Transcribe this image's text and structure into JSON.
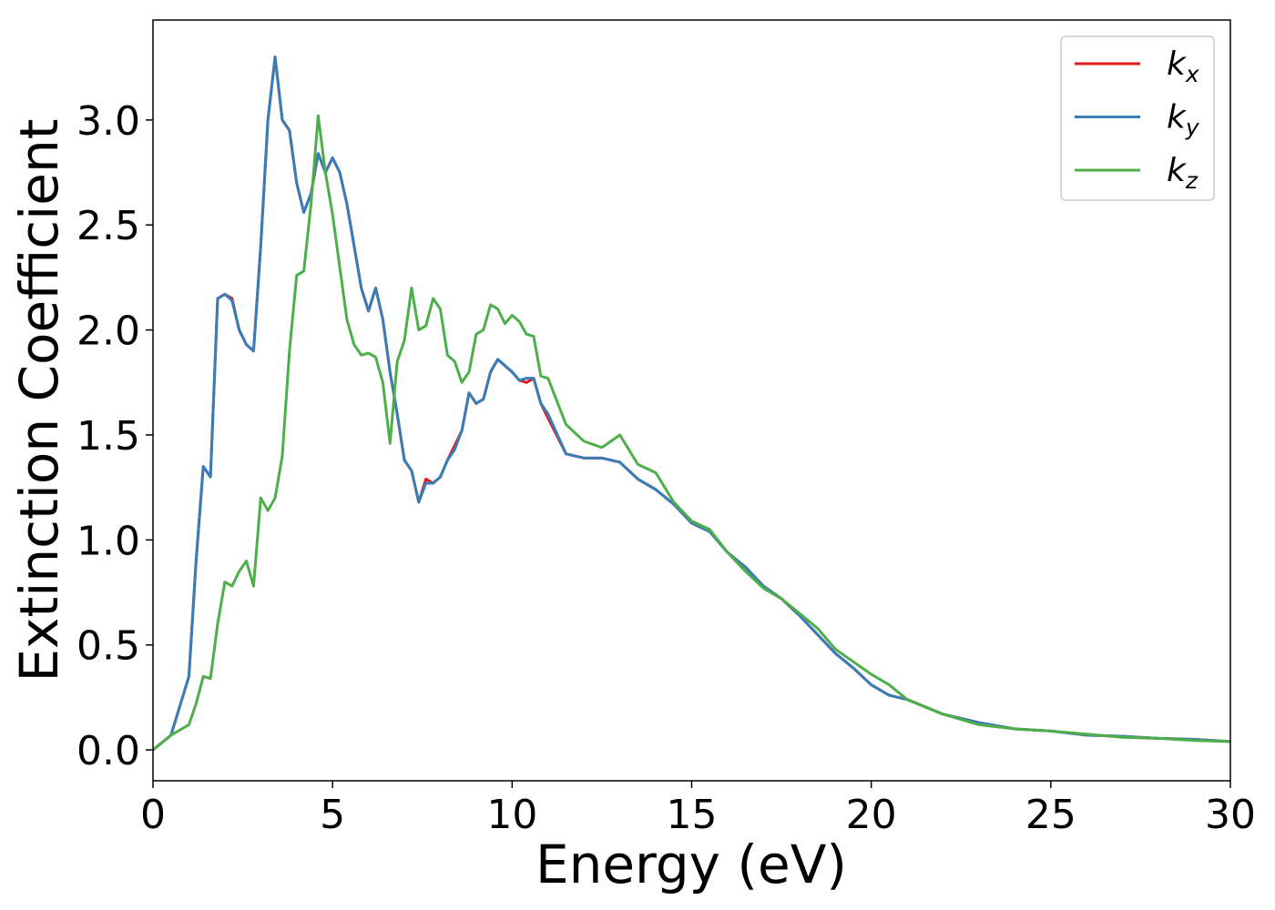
{
  "chart_data": {
    "type": "line",
    "xlabel": "Energy (eV)",
    "ylabel": "Extinction Coefficient",
    "x": [
      0,
      0.5,
      1,
      1.2,
      1.4,
      1.6,
      1.8,
      2.0,
      2.2,
      2.4,
      2.6,
      2.8,
      3.0,
      3.2,
      3.4,
      3.6,
      3.8,
      4.0,
      4.2,
      4.4,
      4.6,
      4.8,
      5.0,
      5.2,
      5.4,
      5.6,
      5.8,
      6.0,
      6.2,
      6.4,
      6.6,
      6.8,
      7.0,
      7.2,
      7.4,
      7.6,
      7.8,
      8.0,
      8.2,
      8.4,
      8.6,
      8.8,
      9.0,
      9.2,
      9.4,
      9.6,
      9.8,
      10.0,
      10.2,
      10.4,
      10.6,
      10.8,
      11,
      11.5,
      12,
      12.5,
      13,
      13.5,
      14,
      14.5,
      15,
      15.5,
      16,
      16.5,
      17,
      17.5,
      18,
      18.5,
      19,
      19.5,
      20,
      20.5,
      21,
      22,
      23,
      24,
      25,
      26,
      27,
      28,
      29,
      30
    ],
    "series": [
      {
        "name": "kx",
        "color": "#e41a1c",
        "values": [
          0,
          0.07,
          0.35,
          0.9,
          1.35,
          1.3,
          2.15,
          2.17,
          2.15,
          2.0,
          1.93,
          1.9,
          2.4,
          3.0,
          3.3,
          3.0,
          2.95,
          2.7,
          2.56,
          2.65,
          2.84,
          2.75,
          2.82,
          2.75,
          2.6,
          2.4,
          2.2,
          2.09,
          2.2,
          2.05,
          1.8,
          1.6,
          1.38,
          1.33,
          1.18,
          1.29,
          1.27,
          1.3,
          1.38,
          1.45,
          1.52,
          1.7,
          1.65,
          1.67,
          1.8,
          1.86,
          1.83,
          1.8,
          1.76,
          1.75,
          1.77,
          1.65,
          1.58,
          1.41,
          1.39,
          1.39,
          1.37,
          1.29,
          1.24,
          1.17,
          1.08,
          1.04,
          0.94,
          0.87,
          0.78,
          0.72,
          0.64,
          0.55,
          0.46,
          0.39,
          0.31,
          0.26,
          0.24,
          0.17,
          0.13,
          0.1,
          0.09,
          0.07,
          0.065,
          0.055,
          0.05,
          0.04
        ]
      },
      {
        "name": "ky",
        "color": "#377eb8",
        "values": [
          0,
          0.07,
          0.35,
          0.9,
          1.35,
          1.3,
          2.15,
          2.17,
          2.14,
          2.0,
          1.93,
          1.9,
          2.4,
          3.0,
          3.3,
          3.0,
          2.95,
          2.7,
          2.56,
          2.65,
          2.84,
          2.75,
          2.82,
          2.75,
          2.6,
          2.4,
          2.2,
          2.09,
          2.2,
          2.05,
          1.8,
          1.6,
          1.38,
          1.33,
          1.18,
          1.27,
          1.27,
          1.3,
          1.38,
          1.43,
          1.52,
          1.7,
          1.65,
          1.67,
          1.8,
          1.86,
          1.83,
          1.8,
          1.76,
          1.77,
          1.77,
          1.65,
          1.6,
          1.41,
          1.39,
          1.39,
          1.37,
          1.29,
          1.24,
          1.17,
          1.08,
          1.04,
          0.94,
          0.87,
          0.78,
          0.72,
          0.64,
          0.55,
          0.46,
          0.39,
          0.31,
          0.26,
          0.24,
          0.17,
          0.13,
          0.1,
          0.09,
          0.07,
          0.065,
          0.055,
          0.05,
          0.04
        ]
      },
      {
        "name": "kz",
        "color": "#4daf4a",
        "values": [
          0,
          0.07,
          0.12,
          0.22,
          0.35,
          0.34,
          0.6,
          0.8,
          0.78,
          0.85,
          0.9,
          0.78,
          1.2,
          1.14,
          1.2,
          1.4,
          1.9,
          2.26,
          2.28,
          2.6,
          3.02,
          2.75,
          2.55,
          2.3,
          2.05,
          1.93,
          1.88,
          1.89,
          1.87,
          1.75,
          1.46,
          1.85,
          1.95,
          2.2,
          2.0,
          2.02,
          2.15,
          2.1,
          1.88,
          1.85,
          1.75,
          1.8,
          1.98,
          2.0,
          2.12,
          2.1,
          2.03,
          2.07,
          2.04,
          1.98,
          1.97,
          1.78,
          1.77,
          1.55,
          1.47,
          1.44,
          1.5,
          1.36,
          1.32,
          1.18,
          1.09,
          1.05,
          0.94,
          0.85,
          0.77,
          0.72,
          0.65,
          0.58,
          0.48,
          0.42,
          0.36,
          0.31,
          0.24,
          0.17,
          0.12,
          0.1,
          0.09,
          0.075,
          0.06,
          0.055,
          0.045,
          0.04
        ]
      }
    ],
    "xlim": [
      0,
      30
    ],
    "ylim": [
      -0.147,
      3.476
    ],
    "xticks": [
      0,
      5,
      10,
      15,
      20,
      25,
      30
    ],
    "yticks": [
      {
        "value": 0,
        "label": "0.0"
      },
      {
        "value": 0.5,
        "label": "0.5"
      },
      {
        "value": 1,
        "label": "1.0"
      },
      {
        "value": 1.5,
        "label": "1.5"
      },
      {
        "value": 2,
        "label": "2.0"
      },
      {
        "value": 2.5,
        "label": "2.5"
      },
      {
        "value": 3,
        "label": "3.0"
      }
    ],
    "legend": "upper right",
    "grid": false
  }
}
